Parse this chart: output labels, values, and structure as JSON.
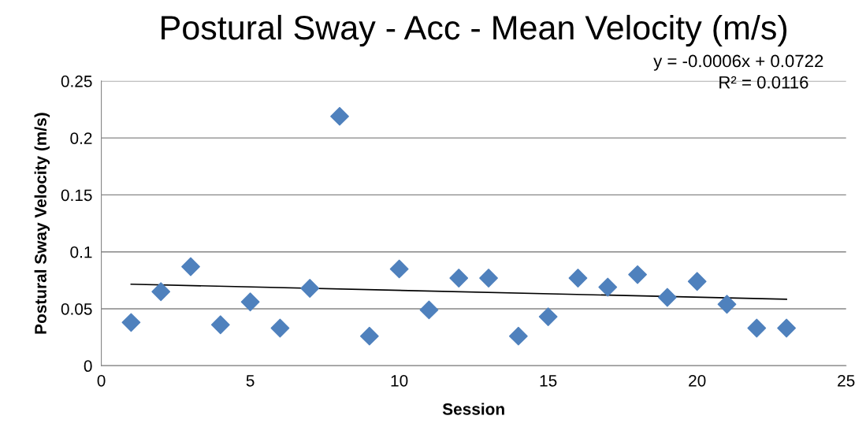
{
  "chart_data": {
    "type": "scatter",
    "title": "Postural Sway - Acc - Mean Velocity (m/s)",
    "xlabel": "Session",
    "ylabel": "Postural Sway Velocity (m/s)",
    "series": [
      {
        "color": "#4f81bd",
        "marker": "diamond",
        "x": [
          1,
          2,
          3,
          4,
          5,
          6,
          7,
          8,
          9,
          10,
          11,
          12,
          13,
          14,
          15,
          16,
          17,
          18,
          19,
          20,
          21,
          22,
          23
        ],
        "values": [
          0.038,
          0.065,
          0.087,
          0.036,
          0.056,
          0.033,
          0.068,
          0.219,
          0.026,
          0.085,
          0.049,
          0.077,
          0.077,
          0.026,
          0.043,
          0.077,
          0.069,
          0.08,
          0.06,
          0.074,
          0.054,
          0.033,
          0.033
        ]
      },
      {
        "type": "line",
        "color": "#000000",
        "marker": "none",
        "x": [
          1,
          23
        ],
        "values": [
          0.0716,
          0.0584
        ]
      }
    ],
    "annotations": [
      "y = -0.0006x + 0.0722",
      "R² = 0.0116"
    ],
    "xlim": [
      0,
      25
    ],
    "xticks": [
      0,
      5,
      10,
      15,
      20,
      25
    ],
    "ylim": [
      0,
      0.25
    ],
    "yticks": [
      0,
      0.05,
      0.1,
      0.15,
      0.2,
      0.25
    ],
    "grid": "y"
  }
}
